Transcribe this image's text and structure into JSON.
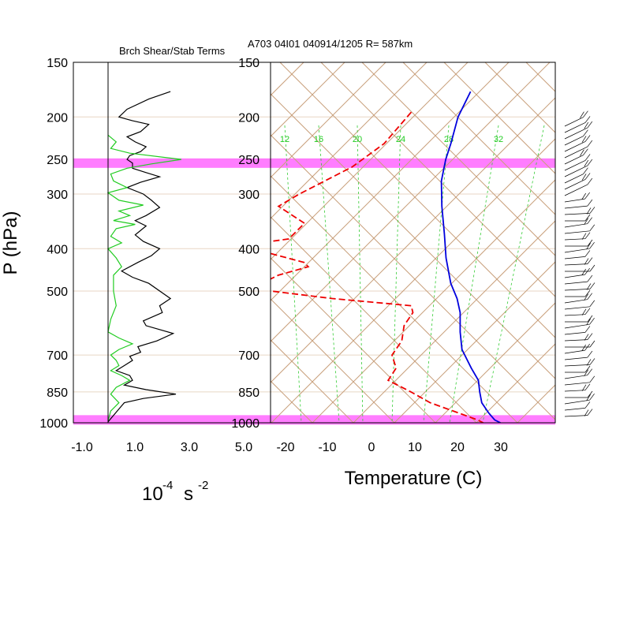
{
  "header": {
    "left_title": "Brch Shear/Stab Terms",
    "right_title": "A703 04I01 040914/1205 R= 587km"
  },
  "y_axis": {
    "label": "P (hPa)",
    "pressure_levels": [
      "150",
      "200",
      "250",
      "300",
      "400",
      "500",
      "700",
      "850",
      "1000"
    ]
  },
  "shear_panel": {
    "x_ticks": [
      "-1.0",
      "1.0",
      "3.0",
      "5.0"
    ],
    "x_label_base": "10",
    "x_label_exp1": "-4",
    "x_label_unit": "s",
    "x_label_exp2": "-2",
    "colors": {
      "shear": "#000000",
      "stab": "#22cc22"
    }
  },
  "skewt_panel": {
    "x_ticks": [
      "-20",
      "-10",
      "0",
      "10",
      "20",
      "30"
    ],
    "x_label": "Temperature (C)",
    "mixing_ratio_labels": [
      "12",
      "16",
      "20",
      "24",
      "28",
      "32"
    ],
    "colors": {
      "temperature": "#0000dd",
      "dewpoint": "#ee0000",
      "isotherm": "#c8a07c",
      "mixing": "#33cc33"
    }
  },
  "highlight_bands": {
    "levels_hpa": [
      255,
      985
    ],
    "color": "#ff66ff"
  },
  "chart_data": [
    {
      "type": "line",
      "title": "Brch Shear/Stab Terms",
      "xlabel": "10-4 s -2",
      "ylabel": "P (hPa)",
      "xlim": [
        -1.0,
        5.0
      ],
      "ylim": [
        1000,
        150
      ],
      "y_scale": "log",
      "series": [
        {
          "style": "black line",
          "points": [
            [
              2.3,
              175
            ],
            [
              1.5,
              182
            ],
            [
              0.7,
              192
            ],
            [
              0.4,
              200
            ],
            [
              0.9,
              204
            ],
            [
              1.5,
              208
            ],
            [
              1.2,
              216
            ],
            [
              0.7,
              222
            ],
            [
              1.0,
              228
            ],
            [
              1.4,
              234
            ],
            [
              1.2,
              240
            ],
            [
              0.8,
              245
            ],
            [
              0.7,
              250
            ],
            [
              0.9,
              255
            ],
            [
              0.9,
              262
            ],
            [
              1.4,
              268
            ],
            [
              1.9,
              274
            ],
            [
              1.2,
              282
            ],
            [
              0.7,
              290
            ],
            [
              1.3,
              300
            ],
            [
              1.6,
              310
            ],
            [
              1.9,
              322
            ],
            [
              1.4,
              336
            ],
            [
              1.0,
              345
            ],
            [
              1.4,
              355
            ],
            [
              1.0,
              372
            ],
            [
              1.3,
              385
            ],
            [
              1.9,
              400
            ],
            [
              1.6,
              415
            ],
            [
              1.1,
              430
            ],
            [
              0.5,
              450
            ],
            [
              0.9,
              465
            ],
            [
              1.5,
              480
            ],
            [
              2.3,
              520
            ],
            [
              1.9,
              540
            ],
            [
              2.0,
              560
            ],
            [
              1.3,
              585
            ],
            [
              1.4,
              600
            ],
            [
              2.4,
              625
            ],
            [
              1.8,
              650
            ],
            [
              1.1,
              670
            ],
            [
              1.2,
              690
            ],
            [
              0.8,
              705
            ],
            [
              0.9,
              720
            ],
            [
              0.6,
              740
            ],
            [
              0.3,
              760
            ],
            [
              0.8,
              780
            ],
            [
              0.9,
              800
            ],
            [
              0.6,
              820
            ],
            [
              1.4,
              840
            ],
            [
              2.5,
              860
            ],
            [
              1.3,
              880
            ],
            [
              0.6,
              900
            ],
            [
              0.4,
              930
            ],
            [
              0.0,
              995
            ]
          ]
        },
        {
          "style": "green line",
          "points": [
            [
              0.0,
              220
            ],
            [
              0.3,
              228
            ],
            [
              0.1,
              236
            ],
            [
              0.8,
              242
            ],
            [
              2.7,
              250
            ],
            [
              1.6,
              256
            ],
            [
              0.7,
              262
            ],
            [
              0.1,
              270
            ],
            [
              0.2,
              280
            ],
            [
              0.7,
              290
            ],
            [
              0.0,
              298
            ],
            [
              0.4,
              310
            ],
            [
              1.3,
              318
            ],
            [
              0.4,
              328
            ],
            [
              0.8,
              336
            ],
            [
              0.2,
              345
            ],
            [
              1.0,
              352
            ],
            [
              0.3,
              360
            ],
            [
              0.1,
              375
            ],
            [
              0.5,
              388
            ],
            [
              0.0,
              400
            ],
            [
              0.3,
              420
            ],
            [
              0.5,
              440
            ],
            [
              0.2,
              460
            ],
            [
              0.2,
              480
            ],
            [
              0.2,
              500
            ],
            [
              0.3,
              540
            ],
            [
              0.1,
              580
            ],
            [
              0.0,
              620
            ],
            [
              0.4,
              640
            ],
            [
              0.9,
              660
            ],
            [
              0.4,
              680
            ],
            [
              0.1,
              700
            ],
            [
              0.3,
              720
            ],
            [
              0.4,
              740
            ],
            [
              0.1,
              760
            ],
            [
              0.5,
              780
            ],
            [
              0.8,
              800
            ],
            [
              0.3,
              830
            ],
            [
              0.1,
              860
            ],
            [
              0.4,
              900
            ],
            [
              0.1,
              940
            ],
            [
              0.0,
              990
            ]
          ]
        }
      ]
    },
    {
      "type": "line",
      "title": "A703 04I01 040914/1205 R= 587km",
      "xlabel": "Temperature (C)",
      "ylabel": "P (hPa)",
      "xlim": [
        -23,
        30
      ],
      "ylim": [
        1000,
        150
      ],
      "y_scale": "log",
      "skew": "skew-T",
      "series": [
        {
          "name": "Temperature",
          "points": [
            [
              -54,
              175
            ],
            [
              -51,
              200
            ],
            [
              -46.5,
              230
            ],
            [
              -44,
              250
            ],
            [
              -40,
              280
            ],
            [
              -34,
              320
            ],
            [
              -27,
              370
            ],
            [
              -21,
              420
            ],
            [
              -14,
              480
            ],
            [
              -9,
              520
            ],
            [
              -5,
              560
            ],
            [
              -0.5,
              620
            ],
            [
              4,
              680
            ],
            [
              10.5,
              750
            ],
            [
              15,
              800
            ],
            [
              18,
              850
            ],
            [
              21,
              900
            ],
            [
              25,
              950
            ],
            [
              28,
              985
            ],
            [
              30,
              1000
            ]
          ]
        },
        {
          "name": "Dewpoint",
          "points": [
            [
              -63,
              195
            ],
            [
              -62,
              230
            ],
            [
              -64,
              260
            ],
            [
              -70,
              300
            ],
            [
              -72,
              320
            ],
            [
              -62,
              350
            ],
            [
              -62,
              380
            ],
            [
              -76,
              400
            ],
            [
              -63,
              410
            ],
            [
              -53,
              430
            ],
            [
              -51,
              440
            ],
            [
              -56,
              460
            ],
            [
              -58,
              480
            ],
            [
              -54,
              500
            ],
            [
              -38,
              520
            ],
            [
              -18,
              540
            ],
            [
              -16,
              560
            ],
            [
              -15,
              600
            ],
            [
              -12,
              650
            ],
            [
              -11,
              700
            ],
            [
              -7,
              750
            ],
            [
              -6,
              800
            ],
            [
              2,
              850
            ],
            [
              9,
              900
            ],
            [
              18,
              950
            ],
            [
              24,
              985
            ],
            [
              26,
              1000
            ]
          ]
        }
      ]
    }
  ]
}
